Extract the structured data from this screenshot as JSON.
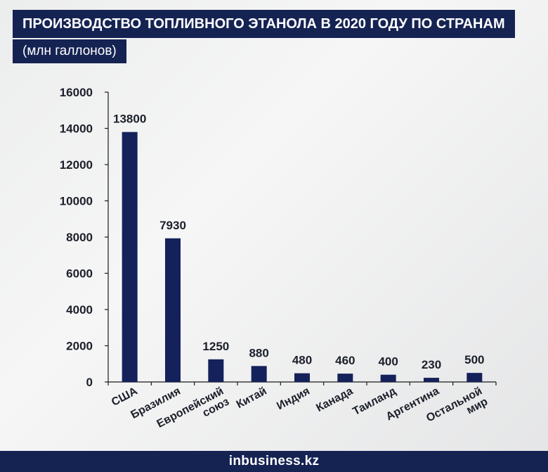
{
  "header": {
    "title": "ПРОИЗВОДСТВО ТОПЛИВНОГО ЭТАНОЛА В 2020 ГОДУ ПО СТРАНАМ",
    "subtitle": "(млн галлонов)"
  },
  "footer": {
    "brand": "inbusiness.kz"
  },
  "colors": {
    "bar": "#14215a",
    "header_bg": "#152353",
    "axis": "#1a1a1a"
  },
  "chart_data": {
    "type": "bar",
    "title": "ПРОИЗВОДСТВО ТОПЛИВНОГО ЭТАНОЛА В 2020 ГОДУ ПО СТРАНАМ",
    "subtitle": "(млн галлонов)",
    "categories": [
      [
        "США"
      ],
      [
        "Бразилия"
      ],
      [
        "Европейский",
        "союз"
      ],
      [
        "Китай"
      ],
      [
        "Индия"
      ],
      [
        "Канада"
      ],
      [
        "Таиланд"
      ],
      [
        "Аргентина"
      ],
      [
        "Остальной",
        "мир"
      ]
    ],
    "values": [
      13800,
      7930,
      1250,
      880,
      480,
      460,
      400,
      230,
      500
    ],
    "data_labels": [
      "13800",
      "7930",
      "1250",
      "880",
      "480",
      "460",
      "400",
      "230",
      "500"
    ],
    "ylim": [
      0,
      16000
    ],
    "yticks": [
      0,
      2000,
      4000,
      6000,
      8000,
      10000,
      12000,
      14000,
      16000
    ],
    "grid": false,
    "legend": "none"
  }
}
